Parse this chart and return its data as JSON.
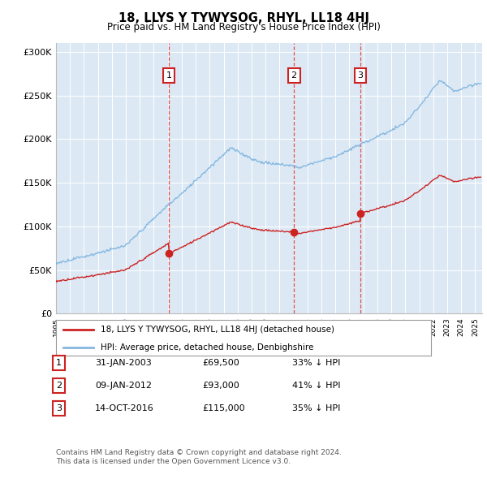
{
  "title": "18, LLYS Y TYWYSOG, RHYL, LL18 4HJ",
  "subtitle": "Price paid vs. HM Land Registry's House Price Index (HPI)",
  "background_color": "#ffffff",
  "plot_bg_color": "#dce9f5",
  "hpi_color": "#85b8e0",
  "price_color": "#cc2222",
  "sale_marker_color": "#cc2222",
  "transactions": [
    {
      "label": "1",
      "date_str": "31-JAN-2003",
      "price": "£69,500",
      "pct": "33% ↓ HPI",
      "x_year": 2003.08
    },
    {
      "label": "2",
      "date_str": "09-JAN-2012",
      "price": "£93,000",
      "pct": "41% ↓ HPI",
      "x_year": 2012.03
    },
    {
      "label": "3",
      "date_str": "14-OCT-2016",
      "price": "£115,000",
      "pct": "35% ↓ HPI",
      "x_year": 2016.79
    }
  ],
  "legend_label_price": "18, LLYS Y TYWYSOG, RHYL, LL18 4HJ (detached house)",
  "legend_label_hpi": "HPI: Average price, detached house, Denbighshire",
  "footer1": "Contains HM Land Registry data © Crown copyright and database right 2024.",
  "footer2": "This data is licensed under the Open Government Licence v3.0.",
  "xmin": 1995.0,
  "xmax": 2025.5,
  "ymin": 0,
  "ymax": 310000,
  "yticks": [
    0,
    50000,
    100000,
    150000,
    200000,
    250000,
    300000
  ],
  "ytick_labels": [
    "£0",
    "£50K",
    "£100K",
    "£150K",
    "£200K",
    "£250K",
    "£300K"
  ],
  "xtick_years": [
    1995,
    1996,
    1997,
    1998,
    1999,
    2000,
    2001,
    2002,
    2003,
    2004,
    2005,
    2006,
    2007,
    2008,
    2009,
    2010,
    2011,
    2012,
    2013,
    2014,
    2015,
    2016,
    2017,
    2018,
    2019,
    2020,
    2021,
    2022,
    2023,
    2024,
    2025
  ]
}
